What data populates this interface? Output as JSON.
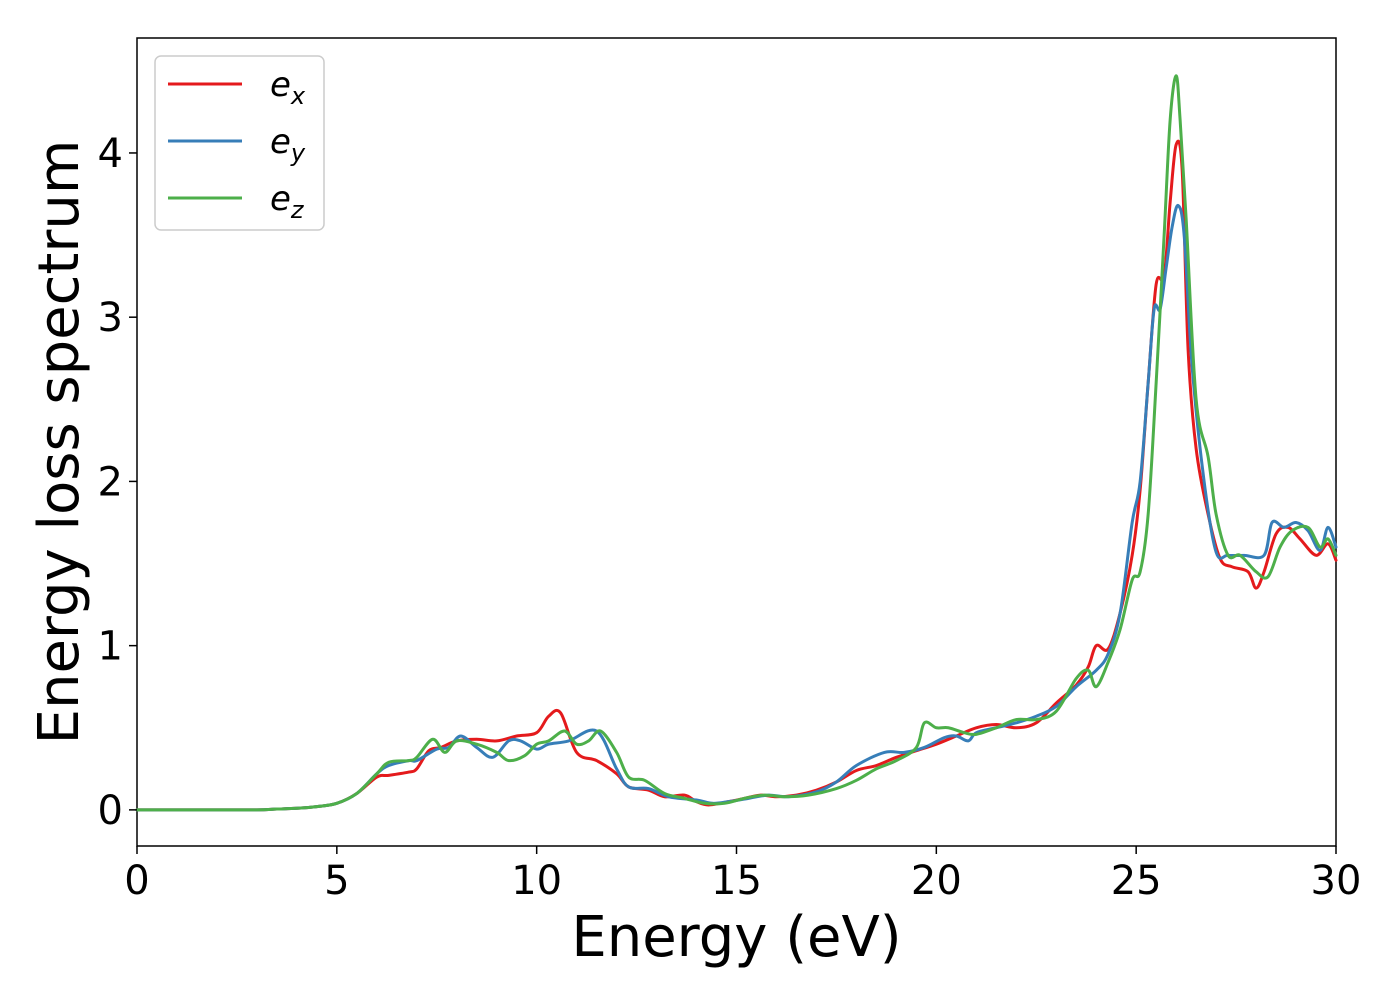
{
  "chart_data": {
    "type": "line",
    "xlabel": "Energy (eV)",
    "ylabel": "Energy loss spectrum",
    "xlim": [
      0,
      30
    ],
    "ylim": [
      -0.22,
      4.7
    ],
    "xticks": [
      0,
      5,
      10,
      15,
      20,
      25,
      30
    ],
    "yticks": [
      0,
      1,
      2,
      3,
      4
    ],
    "grid": false,
    "legend_position": "top-left",
    "series": [
      {
        "name": "e",
        "subscript": "x",
        "color": "#e41a1c",
        "x": [
          0,
          1,
          2,
          3,
          3.5,
          4,
          4.5,
          5,
          5.5,
          6,
          6.3,
          6.8,
          7,
          7.3,
          7.6,
          8,
          8.5,
          9,
          9.5,
          10,
          10.3,
          10.6,
          11,
          11.5,
          12,
          12.3,
          12.8,
          13.2,
          13.7,
          14,
          14.3,
          14.8,
          15.2,
          15.6,
          16,
          16.5,
          17,
          17.5,
          18,
          18.5,
          19,
          19.5,
          20,
          20.5,
          21,
          21.5,
          22,
          22.5,
          23,
          23.5,
          23.8,
          24,
          24.3,
          24.6,
          24.9,
          25.1,
          25.3,
          25.5,
          25.7,
          25.85,
          26,
          26.15,
          26.3,
          26.5,
          26.8,
          27.1,
          27.4,
          27.8,
          28,
          28.2,
          28.5,
          28.8,
          29.1,
          29.5,
          29.8,
          30
        ],
        "values": [
          0,
          0,
          0,
          0,
          0.005,
          0.01,
          0.02,
          0.04,
          0.1,
          0.2,
          0.21,
          0.23,
          0.25,
          0.36,
          0.38,
          0.42,
          0.43,
          0.42,
          0.45,
          0.47,
          0.57,
          0.59,
          0.35,
          0.3,
          0.22,
          0.14,
          0.12,
          0.08,
          0.09,
          0.05,
          0.03,
          0.05,
          0.07,
          0.09,
          0.08,
          0.09,
          0.12,
          0.17,
          0.24,
          0.27,
          0.32,
          0.36,
          0.4,
          0.45,
          0.5,
          0.52,
          0.5,
          0.53,
          0.65,
          0.76,
          0.87,
          1.0,
          0.98,
          1.2,
          1.55,
          1.95,
          2.6,
          3.2,
          3.25,
          3.7,
          4.05,
          3.9,
          2.8,
          2.2,
          1.8,
          1.53,
          1.48,
          1.45,
          1.35,
          1.45,
          1.68,
          1.72,
          1.65,
          1.55,
          1.62,
          1.52
        ]
      },
      {
        "name": "e",
        "subscript": "y",
        "color": "#377eb8",
        "x": [
          0,
          1,
          2,
          3,
          3.5,
          4,
          4.5,
          5,
          5.5,
          6,
          6.3,
          6.8,
          7,
          7.5,
          7.8,
          8.1,
          8.5,
          8.9,
          9.3,
          9.6,
          10,
          10.3,
          10.8,
          11.5,
          12,
          12.3,
          12.8,
          13.3,
          14,
          14.4,
          14.8,
          15.3,
          15.8,
          16.3,
          17,
          17.5,
          18,
          18.7,
          19.2,
          19.7,
          20.2,
          20.5,
          20.8,
          21,
          21.5,
          22,
          22.5,
          23,
          23.5,
          24,
          24.3,
          24.6,
          24.9,
          25.1,
          25.3,
          25.45,
          25.6,
          25.75,
          25.9,
          26.05,
          26.2,
          26.4,
          26.7,
          27,
          27.3,
          27.7,
          28.2,
          28.4,
          28.7,
          29,
          29.3,
          29.6,
          29.8,
          30
        ],
        "values": [
          0,
          0,
          0,
          0,
          0.005,
          0.01,
          0.02,
          0.04,
          0.1,
          0.22,
          0.27,
          0.3,
          0.3,
          0.37,
          0.38,
          0.45,
          0.38,
          0.32,
          0.42,
          0.42,
          0.37,
          0.4,
          0.42,
          0.48,
          0.25,
          0.14,
          0.13,
          0.08,
          0.06,
          0.04,
          0.05,
          0.07,
          0.09,
          0.08,
          0.11,
          0.17,
          0.27,
          0.35,
          0.35,
          0.38,
          0.44,
          0.45,
          0.42,
          0.47,
          0.5,
          0.53,
          0.57,
          0.63,
          0.75,
          0.85,
          0.95,
          1.2,
          1.75,
          2.0,
          2.6,
          3.05,
          3.05,
          3.3,
          3.55,
          3.68,
          3.5,
          2.7,
          2.0,
          1.57,
          1.55,
          1.55,
          1.55,
          1.75,
          1.72,
          1.75,
          1.7,
          1.58,
          1.72,
          1.6
        ]
      },
      {
        "name": "e",
        "subscript": "z",
        "color": "#4daf4a",
        "x": [
          0,
          1,
          2,
          3,
          3.5,
          4,
          4.5,
          5,
          5.5,
          6,
          6.3,
          6.8,
          7,
          7.4,
          7.7,
          8,
          8.5,
          9,
          9.3,
          9.7,
          10,
          10.3,
          10.7,
          11,
          11.3,
          11.6,
          12,
          12.3,
          12.7,
          13.2,
          13.7,
          14.2,
          14.7,
          15.2,
          15.7,
          16.2,
          16.8,
          17.5,
          18,
          18.5,
          19,
          19.5,
          19.7,
          20,
          20.3,
          20.7,
          21,
          21.5,
          22,
          22.5,
          23,
          23.5,
          23.8,
          24,
          24.3,
          24.6,
          24.9,
          25.1,
          25.3,
          25.5,
          25.7,
          25.85,
          26,
          26.1,
          26.25,
          26.5,
          26.8,
          27,
          27.3,
          27.6,
          28,
          28.3,
          28.6,
          28.9,
          29.3,
          29.6,
          29.8,
          30
        ],
        "values": [
          0,
          0,
          0,
          0,
          0.005,
          0.01,
          0.02,
          0.04,
          0.1,
          0.22,
          0.29,
          0.3,
          0.32,
          0.43,
          0.35,
          0.42,
          0.4,
          0.35,
          0.3,
          0.33,
          0.4,
          0.42,
          0.48,
          0.4,
          0.42,
          0.48,
          0.35,
          0.2,
          0.18,
          0.1,
          0.07,
          0.04,
          0.04,
          0.07,
          0.09,
          0.08,
          0.09,
          0.13,
          0.18,
          0.25,
          0.3,
          0.38,
          0.53,
          0.5,
          0.5,
          0.47,
          0.46,
          0.5,
          0.55,
          0.55,
          0.6,
          0.8,
          0.85,
          0.75,
          0.9,
          1.1,
          1.4,
          1.45,
          1.8,
          2.6,
          3.5,
          4.2,
          4.47,
          4.2,
          3.6,
          2.5,
          2.15,
          1.8,
          1.55,
          1.55,
          1.45,
          1.42,
          1.6,
          1.7,
          1.72,
          1.6,
          1.65,
          1.55
        ]
      }
    ]
  }
}
